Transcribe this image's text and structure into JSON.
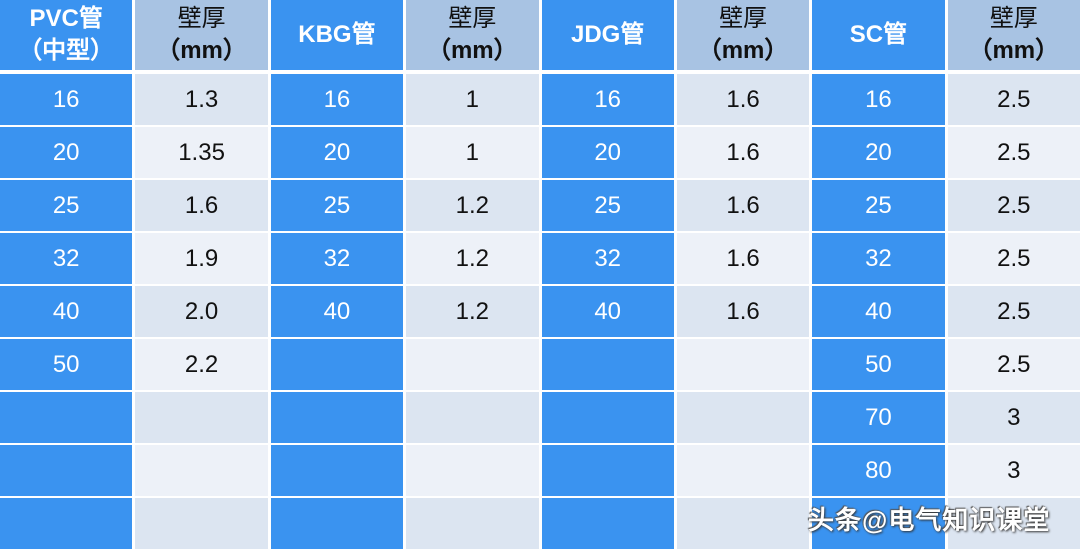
{
  "headers": [
    {
      "line1": "PVC管",
      "line2": "（中型）",
      "type": "k"
    },
    {
      "line1": "壁厚",
      "line2": "（mm）",
      "type": "v"
    },
    {
      "line1": "KBG管",
      "line2": "",
      "type": "k"
    },
    {
      "line1": "壁厚",
      "line2": "（mm）",
      "type": "v"
    },
    {
      "line1": "JDG管",
      "line2": "",
      "type": "k"
    },
    {
      "line1": "壁厚",
      "line2": "（mm）",
      "type": "v"
    },
    {
      "line1": "SC管",
      "line2": "",
      "type": "k"
    },
    {
      "line1": "壁厚",
      "line2": "（mm）",
      "type": "v"
    }
  ],
  "rows": [
    [
      "16",
      "1.3",
      "16",
      "1",
      "16",
      "1.6",
      "16",
      "2.5"
    ],
    [
      "20",
      "1.35",
      "20",
      "1",
      "20",
      "1.6",
      "20",
      "2.5"
    ],
    [
      "25",
      "1.6",
      "25",
      "1.2",
      "25",
      "1.6",
      "25",
      "2.5"
    ],
    [
      "32",
      "1.9",
      "32",
      "1.2",
      "32",
      "1.6",
      "32",
      "2.5"
    ],
    [
      "40",
      "2.0",
      "40",
      "1.2",
      "40",
      "1.6",
      "40",
      "2.5"
    ],
    [
      "50",
      "2.2",
      "",
      "",
      "",
      "",
      "50",
      "2.5"
    ],
    [
      "",
      "",
      "",
      "",
      "",
      "",
      "70",
      "3"
    ],
    [
      "",
      "",
      "",
      "",
      "",
      "",
      "80",
      "3"
    ],
    [
      "",
      "",
      "",
      "",
      "",
      "",
      "",
      ""
    ]
  ],
  "watermark": "头条@电气知识课堂",
  "colors": {
    "key_column": "#3a93f0",
    "header_value": "#a8c3e3",
    "row_odd": "#dce5f1",
    "row_even": "#edf1f8"
  }
}
